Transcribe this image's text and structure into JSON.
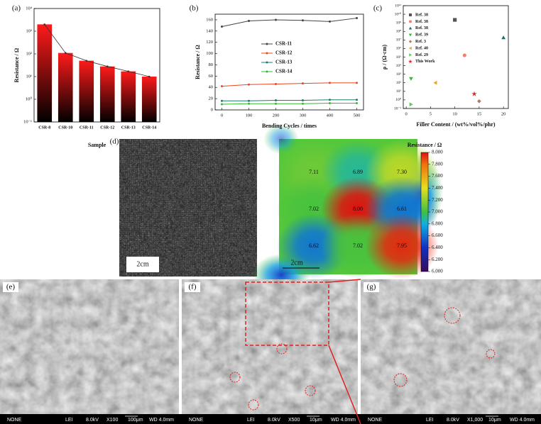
{
  "panel_labels": [
    "(a)",
    "(b)",
    "(c)",
    "(d)",
    "(e)",
    "(f)",
    "(g)"
  ],
  "chart_data": [
    {
      "type": "bar",
      "xlabel": "Sample",
      "ylabel": "Resistance / Ω",
      "categories": [
        "CSR-8",
        "CSR-10",
        "CSR-11",
        "CSR-12",
        "CSR-13",
        "CSR-14"
      ],
      "values": [
        2000,
        110,
        50,
        28,
        17,
        10
      ],
      "log_y": true,
      "ylim": [
        0.1,
        10000
      ],
      "yticks": [
        {
          "value": 0.1,
          "label": "10⁻¹"
        },
        {
          "value": 1,
          "label": "10⁰"
        },
        {
          "value": 10,
          "label": "10¹"
        },
        {
          "value": 100,
          "label": "10²"
        },
        {
          "value": 1000,
          "label": "10³"
        },
        {
          "value": 10000,
          "label": "10⁴"
        }
      ],
      "color": "#ff1a1a",
      "line_color": "#333333"
    },
    {
      "type": "line",
      "xlabel": "Bending Cycles / times",
      "ylabel": "Resistance / Ω",
      "x": [
        0,
        100,
        200,
        300,
        400,
        500
      ],
      "xlim": [
        -25,
        525
      ],
      "xticks": [
        0,
        100,
        200,
        300,
        400,
        500
      ],
      "ylim": [
        0,
        170
      ],
      "yticks": [
        0,
        20,
        40,
        60,
        80,
        100,
        120,
        140,
        160
      ],
      "legend": "center",
      "series": [
        {
          "name": "CSR-11",
          "color": "#444444",
          "values": [
            148,
            158,
            160,
            159,
            157,
            163
          ]
        },
        {
          "name": "CSR-12",
          "color": "#ee4422",
          "values": [
            42,
            45,
            46,
            47,
            48,
            48
          ]
        },
        {
          "name": "CSR-13",
          "color": "#1a7f6e",
          "values": [
            16,
            16,
            17,
            17,
            18,
            18
          ]
        },
        {
          "name": "CSR-14",
          "color": "#33bb33",
          "values": [
            10,
            11,
            11,
            11,
            12,
            12
          ]
        }
      ]
    },
    {
      "type": "scatter",
      "xlabel": "Filler Content / (wt%/vol%/phr)",
      "ylabel": "ρ / (Ω·cm)",
      "xlim": [
        -0.6,
        21
      ],
      "xticks": [
        0,
        5,
        10,
        15,
        20
      ],
      "log_y": true,
      "ylim": [
        0.1,
        100000000000
      ],
      "yticks": [
        {
          "value": 0.1,
          "label": "10⁻¹"
        },
        {
          "value": 1,
          "label": "10⁰"
        },
        {
          "value": 10,
          "label": "10¹"
        },
        {
          "value": 100,
          "label": "10²"
        },
        {
          "value": 1000,
          "label": "10³"
        },
        {
          "value": 10000,
          "label": "10⁴"
        },
        {
          "value": 100000,
          "label": "10⁵"
        },
        {
          "value": 1000000,
          "label": "10⁶"
        },
        {
          "value": 10000000,
          "label": "10⁷"
        },
        {
          "value": 100000000,
          "label": "10⁸"
        },
        {
          "value": 1000000000,
          "label": "10⁹"
        },
        {
          "value": 10000000000,
          "label": "10¹⁰"
        },
        {
          "value": 100000000000,
          "label": "10¹¹"
        }
      ],
      "legend": "upper-left",
      "series": [
        {
          "name": "Ref. 38",
          "color": "#555555",
          "marker": "square",
          "x": [
            10
          ],
          "values": [
            2200000000
          ]
        },
        {
          "name": "Ref. 38",
          "color": "#f08070",
          "marker": "circle",
          "x": [
            12
          ],
          "values": [
            160000
          ]
        },
        {
          "name": "Ref. 38",
          "color": "#1a6e6e",
          "marker": "triangle-up",
          "x": [
            20
          ],
          "values": [
            19000000
          ]
        },
        {
          "name": "Ref. 39",
          "color": "#33bb33",
          "marker": "triangle-down",
          "x": [
            1
          ],
          "values": [
            300
          ]
        },
        {
          "name": "Ref. 3",
          "color": "#b07a70",
          "marker": "diamond",
          "x": [
            15
          ],
          "values": [
            0.7
          ]
        },
        {
          "name": "Ref. 40",
          "color": "#f0a030",
          "marker": "triangle-left",
          "x": [
            6
          ],
          "values": [
            100
          ]
        },
        {
          "name": "Ref. 29",
          "color": "#55cc55",
          "marker": "triangle-right",
          "x": [
            1
          ],
          "values": [
            0.3
          ]
        },
        {
          "name": "This Work",
          "color": "#e02020",
          "marker": "star",
          "x": [
            14
          ],
          "values": [
            5
          ]
        }
      ]
    }
  ],
  "photo": {
    "scale_bar": "2cm"
  },
  "heatmap": {
    "type": "heatmap",
    "title": "Resistance / Ω",
    "values": [
      [
        7.11,
        6.89,
        7.3
      ],
      [
        7.02,
        8.0,
        6.61
      ],
      [
        6.62,
        7.02,
        7.95
      ]
    ],
    "value_labels": [
      [
        "7.11",
        "6.89",
        "7.30"
      ],
      [
        "7.02",
        "8.00",
        "6.61"
      ],
      [
        "6.62",
        "7.02",
        "7.95"
      ]
    ],
    "zlim": [
      6,
      8
    ],
    "zticks": [
      {
        "value": 6,
        "label": "6.000"
      },
      {
        "value": 6.2,
        "label": "6.200"
      },
      {
        "value": 6.4,
        "label": "6.400"
      },
      {
        "value": 6.6,
        "label": "6.600"
      },
      {
        "value": 6.8,
        "label": "6.800"
      },
      {
        "value": 7,
        "label": "7.000"
      },
      {
        "value": 7.2,
        "label": "7.200"
      },
      {
        "value": 7.4,
        "label": "7.400"
      },
      {
        "value": 7.6,
        "label": "7.600"
      },
      {
        "value": 7.8,
        "label": "7.800"
      },
      {
        "value": 8,
        "label": "8.000"
      }
    ],
    "scale_bar": "2cm"
  },
  "sem": [
    {
      "info": [
        "NONE",
        "LEI",
        "8.0kV",
        "X100",
        "100μm",
        "WD 4.0mm"
      ]
    },
    {
      "info": [
        "NONE",
        "LEI",
        "8.0kV",
        "X500",
        "10μm",
        "WD 4.0mm"
      ]
    },
    {
      "info": [
        "NONE",
        "LEI",
        "8.0kV",
        "X1,000",
        "10μm",
        "WD 4.0mm"
      ]
    }
  ]
}
